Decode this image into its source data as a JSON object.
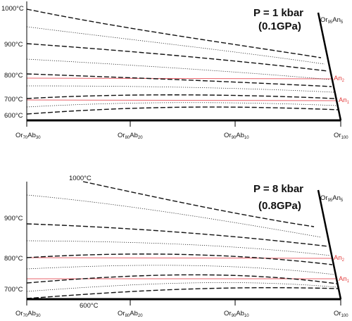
{
  "panels": [
    {
      "id": "top",
      "pressure": "P = 1 kbar",
      "gpa": "(0.1GPa)",
      "temps": [
        "1000°C",
        "900°C",
        "800°C",
        "700°C",
        "600°C"
      ],
      "x_ticks": [
        {
          "main": "Or",
          "s1": "70",
          "mid": "Ab",
          "s2": "30"
        },
        {
          "main": "Or",
          "s1": "80",
          "mid": "Ab",
          "s2": "20"
        },
        {
          "main": "Or",
          "s1": "90",
          "mid": "Ab",
          "s2": "10"
        },
        {
          "main": "Or",
          "s1": "100",
          "mid": "",
          "s2": ""
        }
      ],
      "side_label": {
        "main": "Or",
        "s1": "95",
        "mid": "An",
        "s2": "5"
      },
      "an_labels": [
        {
          "main": "An",
          "s1": "2"
        },
        {
          "main": "An",
          "s1": "1"
        }
      ]
    },
    {
      "id": "bottom",
      "pressure": "P = 8 kbar",
      "gpa": "(0.8GPa)",
      "temps": [
        "1000°C",
        "900°C",
        "800°C",
        "700°C",
        "600°C"
      ],
      "x_ticks": [
        {
          "main": "Or",
          "s1": "70",
          "mid": "Ab",
          "s2": "30"
        },
        {
          "main": "Or",
          "s1": "80",
          "mid": "Ab",
          "s2": "20"
        },
        {
          "main": "Or",
          "s1": "90",
          "mid": "Ab",
          "s2": "10"
        },
        {
          "main": "Or",
          "s1": "100",
          "mid": "",
          "s2": ""
        }
      ],
      "side_label": {
        "main": "Or",
        "s1": "95",
        "mid": "An",
        "s2": "5"
      },
      "an_labels": [
        {
          "main": "An",
          "s1": "2"
        },
        {
          "main": "An",
          "s1": "1"
        }
      ]
    }
  ],
  "colors": {
    "isotherm": "#111111",
    "an_line": "#e8636b",
    "axis": "#000000"
  }
}
